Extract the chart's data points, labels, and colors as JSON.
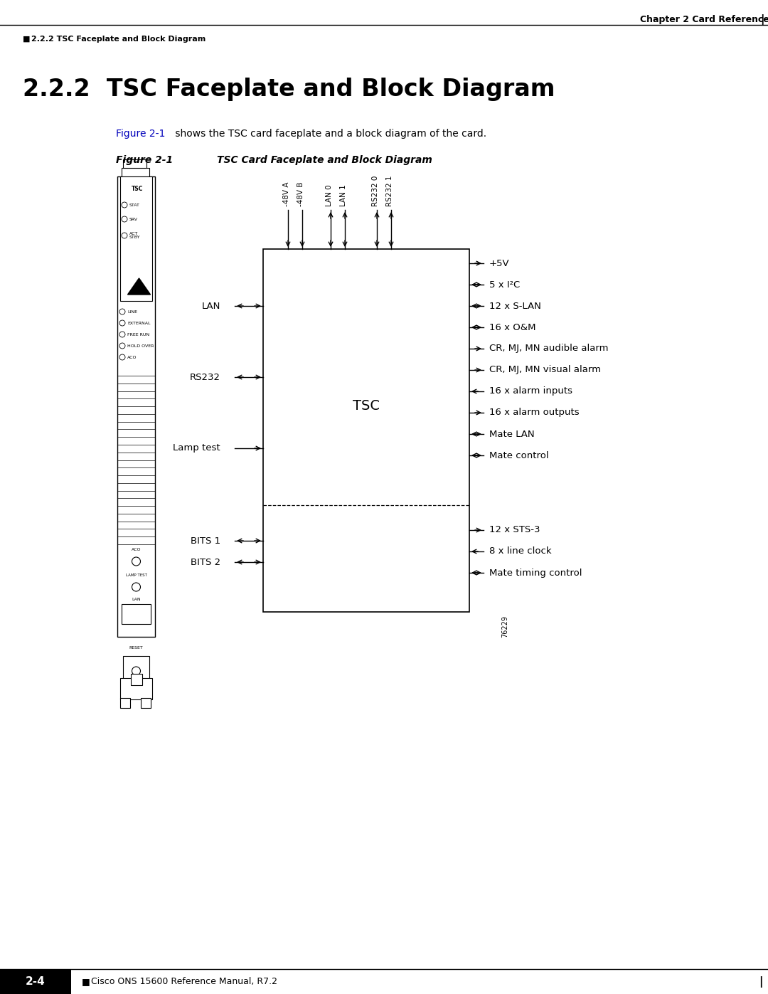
{
  "page_title": "2.2.2  TSC Faceplate and Block Diagram",
  "chapter_header": "Chapter 2 Card Reference",
  "section_label": "2.2.2 TSC Faceplate and Block Diagram",
  "figure_label": "Figure 2-1",
  "figure_title": "TSC Card Faceplate and Block Diagram",
  "intro_text_part1": "Figure 2-1",
  "intro_text_part2": " shows the TSC card faceplate and a block diagram of the card.",
  "footer_text": "Cisco ONS 15600 Reference Manual, R7.2",
  "footer_page": "2-4",
  "figure_number": "76229",
  "tsc_box_label": "TSC",
  "bg_color": "#ffffff",
  "text_color": "#000000",
  "blue_color": "#0000bb",
  "box_color": "#000000"
}
